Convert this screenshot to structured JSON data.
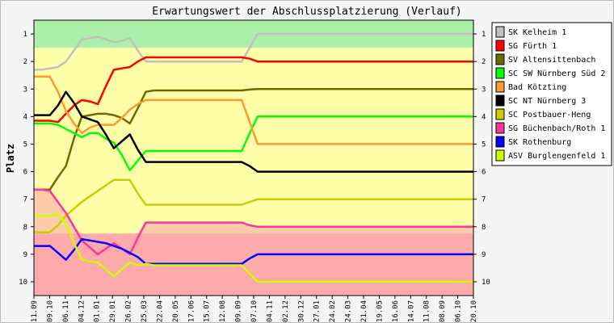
{
  "chart_data": {
    "type": "line",
    "title": "Erwartungswert der Abschlussplatzierung (Verlauf)",
    "ylabel": "Platz",
    "ylim": [
      10.5,
      0.5
    ],
    "y_reversed": true,
    "yticks": [
      1,
      2,
      3,
      4,
      5,
      6,
      7,
      8,
      9,
      10
    ],
    "x": [
      "11.09",
      "25.09",
      "09.10",
      "23.10",
      "06.11",
      "20.11",
      "04.12",
      "18.12",
      "01.01",
      "15.01",
      "29.01",
      "12.02",
      "26.02",
      "11.03",
      "25.03",
      "08.04",
      "22.04",
      "06.05",
      "20.05",
      "03.06",
      "17.06",
      "01.07",
      "15.07",
      "29.07",
      "12.08",
      "26.08",
      "09.09",
      "23.09",
      "07.10",
      "21.10",
      "04.11",
      "18.11",
      "02.12",
      "16.12",
      "30.12",
      "13.01",
      "27.01",
      "10.02",
      "24.02",
      "10.03",
      "24.03",
      "07.04",
      "21.04",
      "05.05",
      "19.05",
      "02.06",
      "16.06",
      "30.06",
      "14.07",
      "28.07",
      "11.08",
      "25.08",
      "08.09",
      "22.09",
      "06.10",
      "20.10"
    ],
    "xtick_labels": [
      "11.09",
      "09.10",
      "06.11",
      "04.12",
      "01.01",
      "29.01",
      "26.02",
      "25.03",
      "22.04",
      "20.05",
      "17.06",
      "15.07",
      "12.08",
      "09.09",
      "07.10",
      "04.11",
      "02.12",
      "30.12",
      "27.01",
      "24.02",
      "24.03",
      "21.04",
      "19.05",
      "16.06",
      "14.07",
      "11.08",
      "08.09",
      "06.10",
      "20.10"
    ],
    "bands": [
      {
        "from": 0.5,
        "to": 1.5,
        "color": "#aaf0aa"
      },
      {
        "from": 1.5,
        "to": 8.25,
        "color": "#ffffaa"
      },
      {
        "from": 8.25,
        "to": 10.5,
        "color": "#ffaaaa"
      }
    ],
    "series": [
      {
        "name": "SK Kelheim 1",
        "color": "#c0c0c0",
        "values": [
          2.3,
          2.3,
          2.25,
          2.2,
          2.0,
          1.6,
          1.2,
          1.15,
          1.1,
          1.2,
          1.3,
          1.25,
          1.15,
          1.6,
          2.0,
          2.0,
          2.0,
          2.0,
          2.0,
          2.0,
          2.0,
          2.0,
          2.0,
          2.0,
          2.0,
          2.0,
          2.0,
          1.5,
          1.0,
          1.0,
          1.0,
          1.0,
          1.0,
          1.0,
          1.0,
          1.0,
          1.0,
          1.0,
          1.0,
          1.0,
          1.0,
          1.0,
          1.0,
          1.0,
          1.0,
          1.0,
          1.0,
          1.0,
          1.0,
          1.0,
          1.0,
          1.0,
          1.0,
          1.0,
          1.0,
          1.0
        ]
      },
      {
        "name": "SG Fürth 1",
        "color": "#ff0000",
        "values": [
          4.15,
          4.15,
          4.15,
          4.2,
          3.9,
          3.6,
          3.4,
          3.45,
          3.55,
          2.9,
          2.3,
          2.25,
          2.2,
          2.0,
          1.85,
          1.85,
          1.85,
          1.85,
          1.85,
          1.85,
          1.85,
          1.85,
          1.85,
          1.85,
          1.85,
          1.85,
          1.85,
          1.9,
          2.0,
          2.0,
          2.0,
          2.0,
          2.0,
          2.0,
          2.0,
          2.0,
          2.0,
          2.0,
          2.0,
          2.0,
          2.0,
          2.0,
          2.0,
          2.0,
          2.0,
          2.0,
          2.0,
          2.0,
          2.0,
          2.0,
          2.0,
          2.0,
          2.0,
          2.0,
          2.0,
          2.0
        ]
      },
      {
        "name": "SV Altensittenbach",
        "color": "#6b6b00",
        "values": [
          6.65,
          6.65,
          6.65,
          6.2,
          5.8,
          4.8,
          4.0,
          3.95,
          3.9,
          3.9,
          3.95,
          4.05,
          4.25,
          3.7,
          3.1,
          3.05,
          3.05,
          3.05,
          3.05,
          3.05,
          3.05,
          3.05,
          3.05,
          3.05,
          3.05,
          3.05,
          3.05,
          3.02,
          3.0,
          3.0,
          3.0,
          3.0,
          3.0,
          3.0,
          3.0,
          3.0,
          3.0,
          3.0,
          3.0,
          3.0,
          3.0,
          3.0,
          3.0,
          3.0,
          3.0,
          3.0,
          3.0,
          3.0,
          3.0,
          3.0,
          3.0,
          3.0,
          3.0,
          3.0,
          3.0,
          3.0
        ]
      },
      {
        "name": "SC SW Nürnberg Süd 2",
        "color": "#00ff00",
        "values": [
          4.25,
          4.25,
          4.25,
          4.3,
          4.45,
          4.6,
          4.75,
          4.6,
          4.6,
          4.8,
          4.95,
          5.4,
          5.95,
          5.6,
          5.25,
          5.25,
          5.25,
          5.25,
          5.25,
          5.25,
          5.25,
          5.25,
          5.25,
          5.25,
          5.25,
          5.25,
          5.25,
          4.6,
          4.0,
          4.0,
          4.0,
          4.0,
          4.0,
          4.0,
          4.0,
          4.0,
          4.0,
          4.0,
          4.0,
          4.0,
          4.0,
          4.0,
          4.0,
          4.0,
          4.0,
          4.0,
          4.0,
          4.0,
          4.0,
          4.0,
          4.0,
          4.0,
          4.0,
          4.0,
          4.0,
          4.0
        ]
      },
      {
        "name": "Bad Kötzting",
        "color": "#ff9933",
        "values": [
          2.55,
          2.55,
          2.55,
          3.1,
          3.8,
          4.25,
          4.6,
          4.4,
          4.3,
          4.3,
          4.3,
          4.05,
          3.75,
          3.55,
          3.4,
          3.4,
          3.4,
          3.4,
          3.4,
          3.4,
          3.4,
          3.4,
          3.4,
          3.4,
          3.4,
          3.4,
          3.4,
          4.2,
          5.0,
          5.0,
          5.0,
          5.0,
          5.0,
          5.0,
          5.0,
          5.0,
          5.0,
          5.0,
          5.0,
          5.0,
          5.0,
          5.0,
          5.0,
          5.0,
          5.0,
          5.0,
          5.0,
          5.0,
          5.0,
          5.0,
          5.0,
          5.0,
          5.0,
          5.0,
          5.0,
          5.0
        ]
      },
      {
        "name": "SC NT Nürnberg 3",
        "color": "#000000",
        "values": [
          3.95,
          3.95,
          3.95,
          3.6,
          3.1,
          3.5,
          4.0,
          4.1,
          4.2,
          4.65,
          5.15,
          4.9,
          4.65,
          5.2,
          5.65,
          5.65,
          5.65,
          5.65,
          5.65,
          5.65,
          5.65,
          5.65,
          5.65,
          5.65,
          5.65,
          5.65,
          5.65,
          5.8,
          6.0,
          6.0,
          6.0,
          6.0,
          6.0,
          6.0,
          6.0,
          6.0,
          6.0,
          6.0,
          6.0,
          6.0,
          6.0,
          6.0,
          6.0,
          6.0,
          6.0,
          6.0,
          6.0,
          6.0,
          6.0,
          6.0,
          6.0,
          6.0,
          6.0,
          6.0,
          6.0,
          6.0
        ]
      },
      {
        "name": "SC Postbauer-Heng",
        "color": "#cccc00",
        "values": [
          8.2,
          8.2,
          8.2,
          7.95,
          7.6,
          7.35,
          7.1,
          6.9,
          6.7,
          6.5,
          6.3,
          6.3,
          6.3,
          6.8,
          7.2,
          7.2,
          7.2,
          7.2,
          7.2,
          7.2,
          7.2,
          7.2,
          7.2,
          7.2,
          7.2,
          7.2,
          7.2,
          7.1,
          7.0,
          7.0,
          7.0,
          7.0,
          7.0,
          7.0,
          7.0,
          7.0,
          7.0,
          7.0,
          7.0,
          7.0,
          7.0,
          7.0,
          7.0,
          7.0,
          7.0,
          7.0,
          7.0,
          7.0,
          7.0,
          7.0,
          7.0,
          7.0,
          7.0,
          7.0,
          7.0,
          7.0
        ]
      },
      {
        "name": "SG Büchenbach/Roth 1",
        "color": "#ff3399",
        "values": [
          6.65,
          6.65,
          6.7,
          7.1,
          7.5,
          8.0,
          8.5,
          8.75,
          9.0,
          8.8,
          8.6,
          8.8,
          9.0,
          8.4,
          7.85,
          7.85,
          7.85,
          7.85,
          7.85,
          7.85,
          7.85,
          7.85,
          7.85,
          7.85,
          7.85,
          7.85,
          7.85,
          7.95,
          8.0,
          8.0,
          8.0,
          8.0,
          8.0,
          8.0,
          8.0,
          8.0,
          8.0,
          8.0,
          8.0,
          8.0,
          8.0,
          8.0,
          8.0,
          8.0,
          8.0,
          8.0,
          8.0,
          8.0,
          8.0,
          8.0,
          8.0,
          8.0,
          8.0,
          8.0,
          8.0,
          8.0
        ]
      },
      {
        "name": "SK Rothenburg",
        "color": "#0000ff",
        "values": [
          8.7,
          8.7,
          8.7,
          8.95,
          9.2,
          8.85,
          8.45,
          8.5,
          8.55,
          8.6,
          8.7,
          8.8,
          8.95,
          9.1,
          9.35,
          9.35,
          9.35,
          9.35,
          9.35,
          9.35,
          9.35,
          9.35,
          9.35,
          9.35,
          9.35,
          9.35,
          9.35,
          9.15,
          9.0,
          9.0,
          9.0,
          9.0,
          9.0,
          9.0,
          9.0,
          9.0,
          9.0,
          9.0,
          9.0,
          9.0,
          9.0,
          9.0,
          9.0,
          9.0,
          9.0,
          9.0,
          9.0,
          9.0,
          9.0,
          9.0,
          9.0,
          9.0,
          9.0,
          9.0,
          9.0,
          9.0
        ]
      },
      {
        "name": "ASV Burglengenfeld 1",
        "color": "#ccff00",
        "values": [
          7.6,
          7.6,
          7.6,
          7.55,
          7.9,
          8.6,
          9.2,
          9.25,
          9.3,
          9.55,
          9.8,
          9.55,
          9.3,
          9.4,
          9.35,
          9.4,
          9.4,
          9.4,
          9.4,
          9.4,
          9.4,
          9.4,
          9.4,
          9.4,
          9.4,
          9.4,
          9.4,
          9.7,
          10.0,
          10.0,
          10.0,
          10.0,
          10.0,
          10.0,
          10.0,
          10.0,
          10.0,
          10.0,
          10.0,
          10.0,
          10.0,
          10.0,
          10.0,
          10.0,
          10.0,
          10.0,
          10.0,
          10.0,
          10.0,
          10.0,
          10.0,
          10.0,
          10.0,
          10.0,
          10.0,
          10.0
        ]
      }
    ],
    "legend_placement": "right",
    "grid": false
  }
}
